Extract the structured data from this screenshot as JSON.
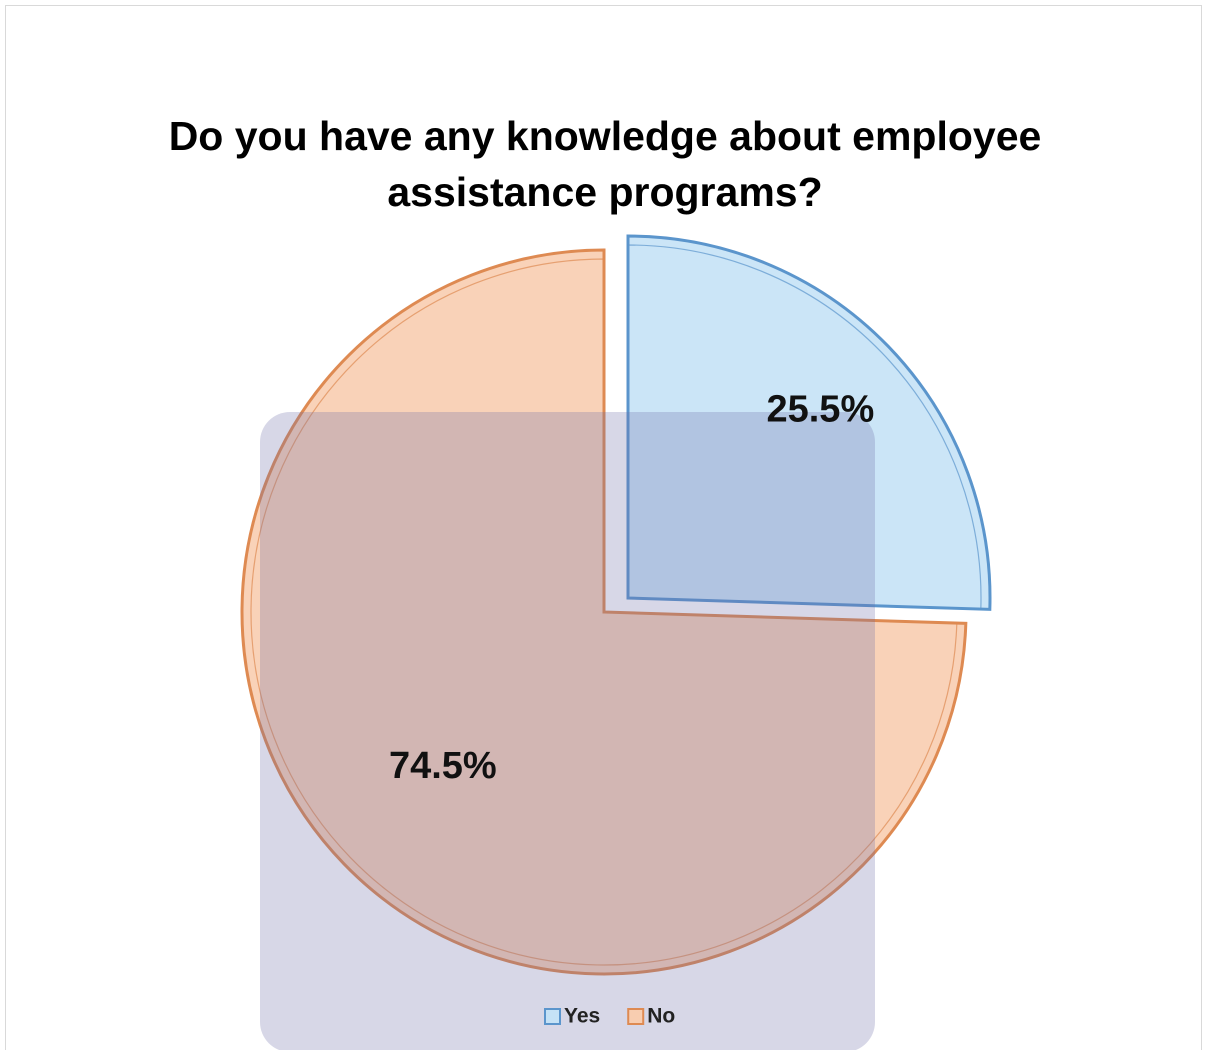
{
  "chart_data": {
    "type": "pie",
    "title": "Do you have any knowledge about employee assistance programs?",
    "categories": [
      "Yes",
      "No"
    ],
    "values": [
      25.5,
      74.5
    ],
    "value_labels": [
      "25.5%",
      "74.5%"
    ],
    "colors": [
      "#c5e2f6",
      "#f8cdb0"
    ],
    "edge_colors": [
      "#5b95cc",
      "#de8a52"
    ],
    "legend": "bottom"
  }
}
